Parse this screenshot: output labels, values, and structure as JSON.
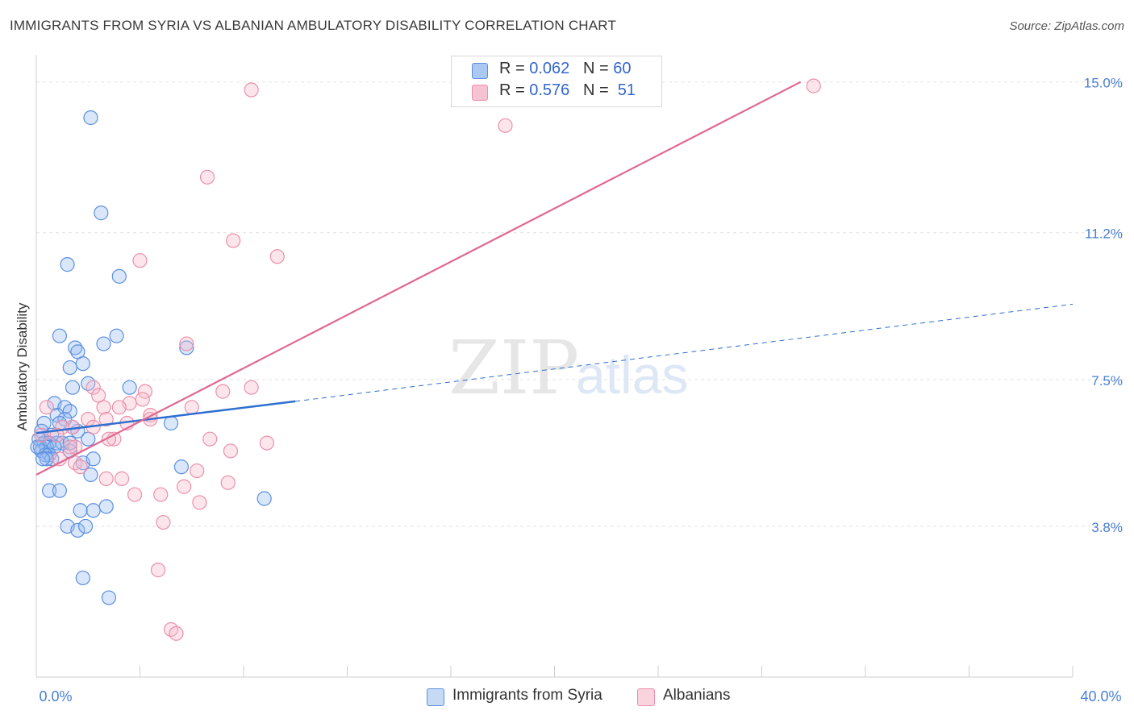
{
  "chart_data": {
    "type": "scatter",
    "title": "IMMIGRANTS FROM SYRIA VS ALBANIAN AMBULATORY DISABILITY CORRELATION CHART",
    "source": "Source: ZipAtlas.com",
    "ylabel": "Ambulatory Disability",
    "xlabel": "",
    "xlim": [
      0,
      40
    ],
    "ylim": [
      0,
      15.4
    ],
    "x_tick_labels": [
      "0.0%",
      "40.0%"
    ],
    "y_ticks": [
      3.8,
      7.5,
      11.2,
      15.0
    ],
    "y_tick_labels": [
      "3.8%",
      "7.5%",
      "11.2%",
      "15.0%"
    ],
    "grid": "horizontal dashed",
    "watermark": "ZIPatlas",
    "legend": [
      {
        "label": "R = ",
        "r": "0.062",
        "n_label": "N = ",
        "n": "60",
        "color": "#aac8f2"
      },
      {
        "label": "R = ",
        "r": "0.576",
        "n_label": "N = ",
        "n": "51",
        "color": "#f6b6c8"
      }
    ],
    "series": [
      {
        "name": "Immigrants from Syria",
        "color": "#5b8fe0",
        "fill": "rgba(150,185,240,0.35)",
        "trend": {
          "x1": 0,
          "y1": 6.15,
          "x2": 10,
          "y2": 6.95,
          "dash_to_x": 40,
          "dash_to_y": 9.4,
          "color": "#2e6fd0"
        },
        "points": [
          [
            2.1,
            14.1
          ],
          [
            2.5,
            11.7
          ],
          [
            1.2,
            10.4
          ],
          [
            3.2,
            10.1
          ],
          [
            0.9,
            8.6
          ],
          [
            2.6,
            8.4
          ],
          [
            3.1,
            8.6
          ],
          [
            1.5,
            8.3
          ],
          [
            1.6,
            8.2
          ],
          [
            1.8,
            7.9
          ],
          [
            5.8,
            8.3
          ],
          [
            1.3,
            7.8
          ],
          [
            2.0,
            7.4
          ],
          [
            3.6,
            7.3
          ],
          [
            1.4,
            7.3
          ],
          [
            0.7,
            6.9
          ],
          [
            1.1,
            6.8
          ],
          [
            0.8,
            6.6
          ],
          [
            1.3,
            6.7
          ],
          [
            1.1,
            6.5
          ],
          [
            0.3,
            6.4
          ],
          [
            0.9,
            6.4
          ],
          [
            1.6,
            6.2
          ],
          [
            1.4,
            6.3
          ],
          [
            0.2,
            6.2
          ],
          [
            0.6,
            6.1
          ],
          [
            2.0,
            6.0
          ],
          [
            0.1,
            6.0
          ],
          [
            0.3,
            5.9
          ],
          [
            0.5,
            5.9
          ],
          [
            0.8,
            5.9
          ],
          [
            1.0,
            5.9
          ],
          [
            0.15,
            5.8
          ],
          [
            0.4,
            5.8
          ],
          [
            0.7,
            5.8
          ],
          [
            1.3,
            5.7
          ],
          [
            0.2,
            5.7
          ],
          [
            0.5,
            5.6
          ],
          [
            0.35,
            5.6
          ],
          [
            0.6,
            5.5
          ],
          [
            0.4,
            5.5
          ],
          [
            1.8,
            5.4
          ],
          [
            0.25,
            5.5
          ],
          [
            2.2,
            5.5
          ],
          [
            5.2,
            6.4
          ],
          [
            1.3,
            5.9
          ],
          [
            2.1,
            5.1
          ],
          [
            5.6,
            5.3
          ],
          [
            0.5,
            4.7
          ],
          [
            0.9,
            4.7
          ],
          [
            8.8,
            4.5
          ],
          [
            1.7,
            4.2
          ],
          [
            2.2,
            4.2
          ],
          [
            2.7,
            4.3
          ],
          [
            1.2,
            3.8
          ],
          [
            1.6,
            3.7
          ],
          [
            1.9,
            3.8
          ],
          [
            1.8,
            2.5
          ],
          [
            2.8,
            2.0
          ],
          [
            0.05,
            5.8
          ]
        ]
      },
      {
        "name": "Albanians",
        "color": "#ec8fab",
        "fill": "rgba(246,182,200,0.35)",
        "trend": {
          "x1": 0,
          "y1": 5.1,
          "x2": 29.5,
          "y2": 15.0,
          "color": "#e06890"
        },
        "points": [
          [
            30.0,
            14.9
          ],
          [
            8.3,
            14.8
          ],
          [
            18.1,
            13.9
          ],
          [
            6.6,
            12.6
          ],
          [
            7.6,
            11.0
          ],
          [
            9.3,
            10.6
          ],
          [
            4.0,
            10.5
          ],
          [
            5.8,
            8.4
          ],
          [
            8.3,
            7.3
          ],
          [
            7.2,
            7.2
          ],
          [
            2.2,
            7.3
          ],
          [
            4.2,
            7.2
          ],
          [
            2.4,
            7.1
          ],
          [
            4.1,
            7.0
          ],
          [
            3.6,
            6.9
          ],
          [
            6.0,
            6.8
          ],
          [
            2.6,
            6.8
          ],
          [
            3.2,
            6.8
          ],
          [
            0.4,
            6.8
          ],
          [
            4.4,
            6.6
          ],
          [
            2.7,
            6.5
          ],
          [
            2.0,
            6.5
          ],
          [
            3.5,
            6.4
          ],
          [
            1.4,
            6.3
          ],
          [
            2.2,
            6.3
          ],
          [
            1.0,
            6.3
          ],
          [
            4.4,
            6.5
          ],
          [
            3.0,
            6.0
          ],
          [
            2.8,
            6.0
          ],
          [
            6.7,
            6.0
          ],
          [
            0.8,
            6.1
          ],
          [
            0.2,
            6.1
          ],
          [
            1.5,
            5.8
          ],
          [
            8.9,
            5.9
          ],
          [
            1.3,
            5.8
          ],
          [
            0.9,
            5.5
          ],
          [
            1.5,
            5.4
          ],
          [
            1.7,
            5.3
          ],
          [
            6.2,
            5.2
          ],
          [
            2.7,
            5.0
          ],
          [
            3.3,
            5.0
          ],
          [
            7.4,
            4.9
          ],
          [
            5.7,
            4.8
          ],
          [
            3.8,
            4.6
          ],
          [
            4.8,
            4.6
          ],
          [
            6.3,
            4.4
          ],
          [
            4.9,
            3.9
          ],
          [
            4.7,
            2.7
          ],
          [
            5.2,
            1.2
          ],
          [
            5.4,
            1.1
          ],
          [
            7.5,
            5.7
          ]
        ]
      }
    ]
  }
}
